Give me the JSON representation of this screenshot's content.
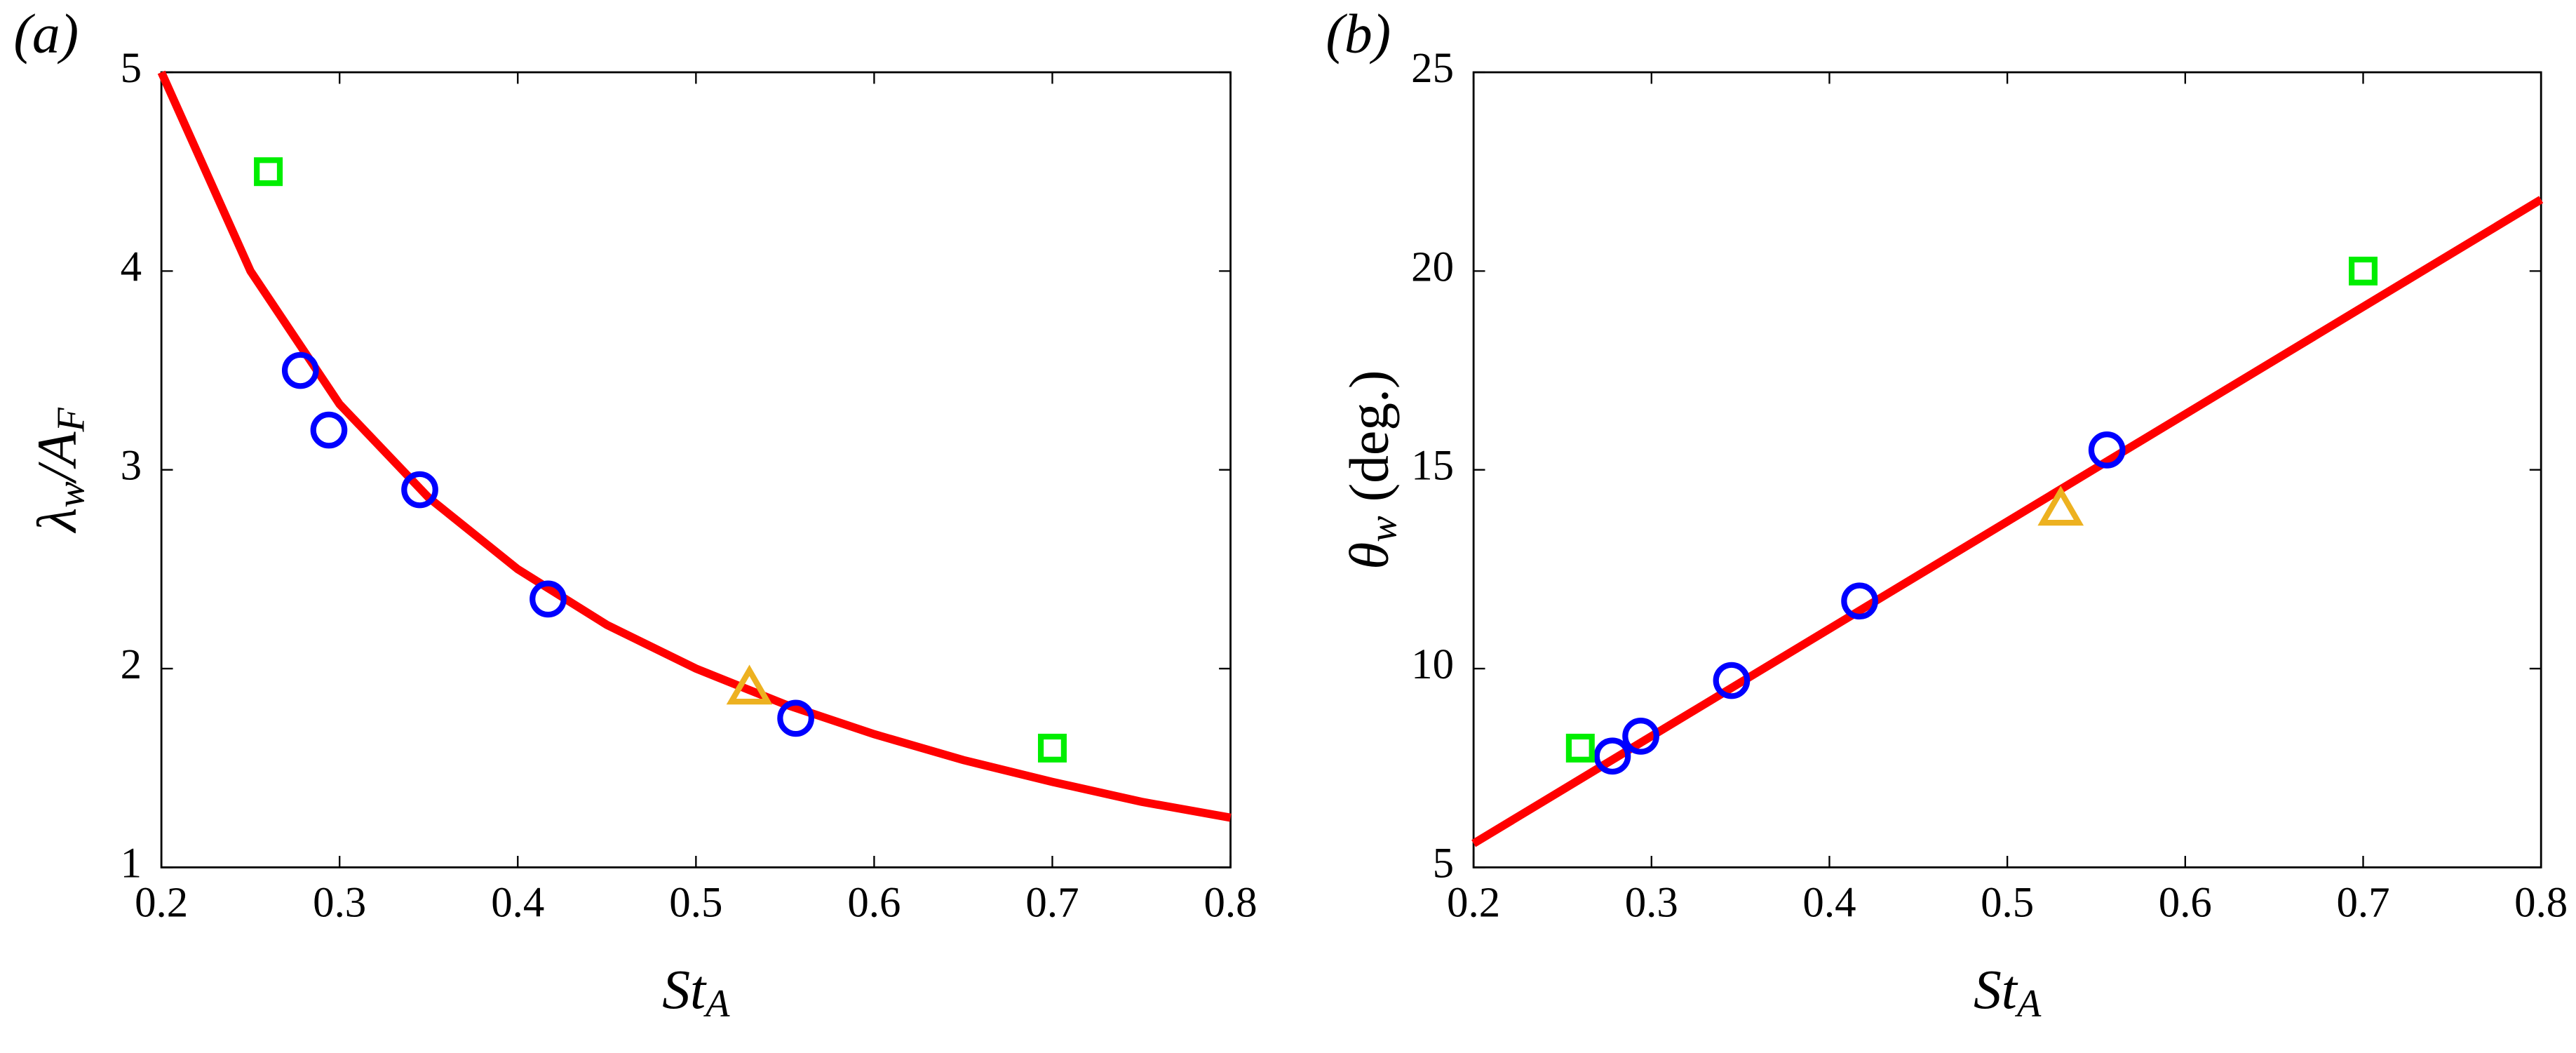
{
  "chart_data": [
    {
      "type": "scatter",
      "panel_label": "(a)",
      "x_label": [
        "St",
        "A"
      ],
      "y_label": [
        "λ",
        "w",
        "/A",
        "F"
      ],
      "xlim": [
        0.2,
        0.8
      ],
      "xticks": [
        0.2,
        0.3,
        0.4,
        0.5,
        0.6,
        0.7,
        0.8
      ],
      "ylim": [
        1,
        5
      ],
      "yticks": [
        1,
        2,
        3,
        4,
        5
      ],
      "series": [
        {
          "marker": "line",
          "color": "#ff0000",
          "x": [
            0.2,
            0.25,
            0.3,
            0.35,
            0.4,
            0.45,
            0.5,
            0.55,
            0.6,
            0.65,
            0.7,
            0.75,
            0.8
          ],
          "values": [
            5,
            4,
            3.33,
            2.86,
            2.5,
            2.22,
            2,
            1.82,
            1.67,
            1.54,
            1.43,
            1.33,
            1.25
          ]
        },
        {
          "marker": "circle",
          "color": "#0000ff",
          "x": [
            0.278,
            0.294,
            0.345,
            0.417,
            0.556
          ],
          "values": [
            3.5,
            3.2,
            2.9,
            2.35,
            1.75
          ]
        },
        {
          "marker": "square",
          "color": "#00ee00",
          "x": [
            0.26,
            0.7
          ],
          "values": [
            4.5,
            1.6
          ]
        },
        {
          "marker": "triangle",
          "color": "#edb120",
          "x": [
            0.53
          ],
          "values": [
            1.9
          ]
        }
      ]
    },
    {
      "type": "scatter",
      "panel_label": "(b)",
      "x_label": [
        "St",
        "A"
      ],
      "y_label": [
        "θ",
        "w",
        " (deg.)"
      ],
      "xlim": [
        0.2,
        0.8
      ],
      "xticks": [
        0.2,
        0.3,
        0.4,
        0.5,
        0.6,
        0.7,
        0.8
      ],
      "ylim": [
        5,
        25
      ],
      "yticks": [
        5,
        10,
        15,
        20,
        25
      ],
      "series": [
        {
          "marker": "line",
          "color": "#ff0000",
          "x": [
            0.2,
            0.8
          ],
          "values": [
            5.6,
            21.8
          ]
        },
        {
          "marker": "circle",
          "color": "#0000ff",
          "x": [
            0.278,
            0.294,
            0.345,
            0.417,
            0.556
          ],
          "values": [
            7.8,
            8.3,
            9.7,
            11.7,
            15.5
          ]
        },
        {
          "marker": "square",
          "color": "#00ee00",
          "x": [
            0.26,
            0.7
          ],
          "values": [
            8,
            20
          ]
        },
        {
          "marker": "triangle",
          "color": "#edb120",
          "x": [
            0.53
          ],
          "values": [
            14
          ]
        }
      ]
    }
  ]
}
